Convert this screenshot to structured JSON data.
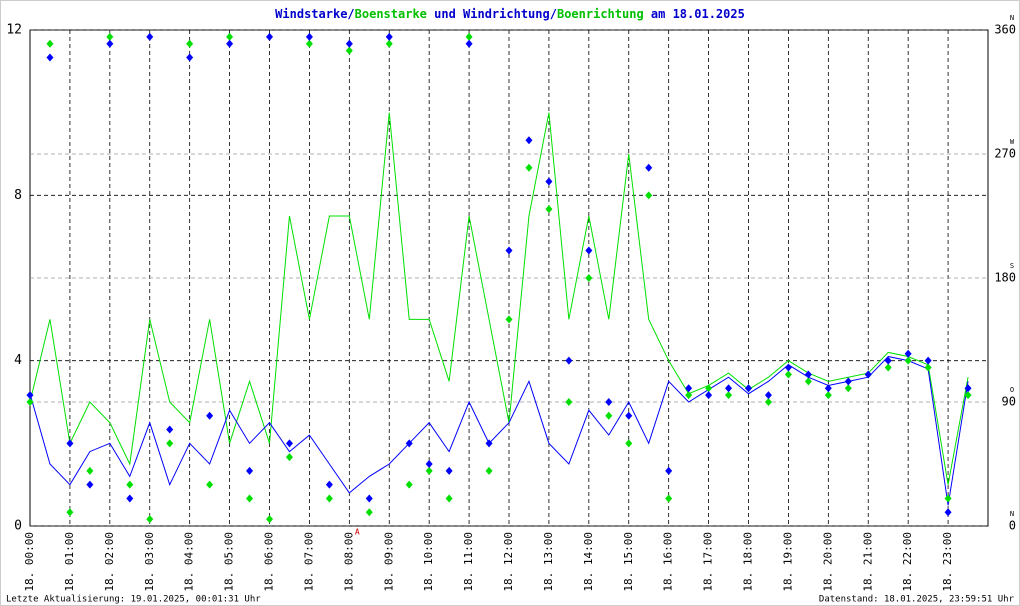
{
  "chart_data": {
    "type": "line",
    "title_parts": [
      "/",
      " und ",
      "/",
      " am 18.01.2025"
    ],
    "title_color": "#0000cc",
    "footer_left": "Letzte Aktualisierung: 19.01.2025, 00:01:31 Uhr",
    "footer_right": "Datenstand: 18.01.2025, 23:59:51 Uhr",
    "annotations": [
      {
        "text": "A",
        "x": 8.2
      }
    ],
    "x": [
      0,
      0.5,
      1,
      1.5,
      2,
      2.5,
      3,
      3.5,
      4,
      4.5,
      5,
      5.5,
      6,
      6.5,
      7,
      7.5,
      8,
      8.5,
      9,
      9.5,
      10,
      10.5,
      11,
      11.5,
      12,
      12.5,
      13,
      13.5,
      14,
      14.5,
      15,
      15.5,
      16,
      16.5,
      17,
      17.5,
      18,
      18.5,
      19,
      19.5,
      20,
      20.5,
      21,
      21.5,
      22,
      22.5,
      23,
      23.5
    ],
    "xlim": [
      0,
      24
    ],
    "xticks": [
      {
        "value": 0,
        "label": "18. 00:00"
      },
      {
        "value": 1,
        "label": "18. 01:00"
      },
      {
        "value": 2,
        "label": "18. 02:00"
      },
      {
        "value": 3,
        "label": "18. 03:00"
      },
      {
        "value": 4,
        "label": "18. 04:00"
      },
      {
        "value": 5,
        "label": "18. 05:00"
      },
      {
        "value": 6,
        "label": "18. 06:00"
      },
      {
        "value": 7,
        "label": "18. 07:00"
      },
      {
        "value": 8,
        "label": "18. 08:00"
      },
      {
        "value": 9,
        "label": "18. 09:00"
      },
      {
        "value": 10,
        "label": "18. 10:00"
      },
      {
        "value": 11,
        "label": "18. 11:00"
      },
      {
        "value": 12,
        "label": "18. 12:00"
      },
      {
        "value": 13,
        "label": "18. 13:00"
      },
      {
        "value": 14,
        "label": "18. 14:00"
      },
      {
        "value": 15,
        "label": "18. 15:00"
      },
      {
        "value": 16,
        "label": "18. 16:00"
      },
      {
        "value": 17,
        "label": "18. 17:00"
      },
      {
        "value": 18,
        "label": "18. 18:00"
      },
      {
        "value": 19,
        "label": "18. 19:00"
      },
      {
        "value": 20,
        "label": "18. 20:00"
      },
      {
        "value": 21,
        "label": "18. 21:00"
      },
      {
        "value": 22,
        "label": "18. 22:00"
      },
      {
        "value": 23,
        "label": "18. 23:00"
      }
    ],
    "ylim": [
      0,
      12
    ],
    "yticks": [
      0,
      4,
      8,
      12
    ],
    "y2lim": [
      0,
      360
    ],
    "y2ticks": [
      0,
      90,
      180,
      270,
      360
    ],
    "y2tick_directions": [
      "N",
      "O",
      "S",
      "W",
      "N"
    ],
    "grid": true,
    "series": [
      {
        "name": "Windstarke",
        "color": "#0000ff",
        "mark": "line",
        "values": [
          3.2,
          1.5,
          1.0,
          1.8,
          2.0,
          1.2,
          2.5,
          1.0,
          2.0,
          1.5,
          2.8,
          2.0,
          2.5,
          1.8,
          2.2,
          1.5,
          0.8,
          1.2,
          1.5,
          2.0,
          2.5,
          1.8,
          3.0,
          2.0,
          2.5,
          3.5,
          2.0,
          1.5,
          2.8,
          2.2,
          3.0,
          2.0,
          3.5,
          3.0,
          3.3,
          3.6,
          3.2,
          3.5,
          3.9,
          3.6,
          3.4,
          3.5,
          3.6,
          4.1,
          4.0,
          3.8,
          0.5,
          3.5
        ]
      },
      {
        "name": "Boenstarke",
        "color": "#00e000",
        "mark": "line",
        "values": [
          3.0,
          5.0,
          2.0,
          3.0,
          2.5,
          1.5,
          5.0,
          3.0,
          2.5,
          5.0,
          2.0,
          3.5,
          2.0,
          7.5,
          5.0,
          7.5,
          7.5,
          5.0,
          10.0,
          5.0,
          5.0,
          3.5,
          7.5,
          5.0,
          2.5,
          7.5,
          10.0,
          5.0,
          7.5,
          5.0,
          9.0,
          5.0,
          4.0,
          3.2,
          3.4,
          3.7,
          3.3,
          3.6,
          4.0,
          3.7,
          3.5,
          3.6,
          3.7,
          4.2,
          4.1,
          3.9,
          1.0,
          3.6
        ]
      },
      {
        "name": "Windrichtung",
        "color": "#0000ff",
        "mark": "diamond",
        "axis": "y2",
        "values": [
          95,
          340,
          60,
          30,
          350,
          20,
          355,
          70,
          340,
          80,
          350,
          40,
          355,
          60,
          355,
          30,
          350,
          20,
          355,
          60,
          45,
          40,
          350,
          60,
          200,
          280,
          250,
          120,
          200,
          90,
          80,
          260,
          40,
          100,
          95,
          100,
          100,
          95,
          115,
          110,
          100,
          105,
          110,
          120,
          125,
          120,
          10,
          100
        ]
      },
      {
        "name": "Boenrichtung",
        "color": "#00e000",
        "mark": "diamond",
        "axis": "y2",
        "values": [
          90,
          350,
          10,
          40,
          355,
          30,
          5,
          60,
          350,
          30,
          355,
          20,
          5,
          50,
          350,
          20,
          345,
          10,
          350,
          30,
          40,
          20,
          355,
          40,
          150,
          260,
          230,
          90,
          180,
          80,
          60,
          240,
          20,
          95,
          100,
          95,
          100,
          90,
          110,
          105,
          95,
          100,
          110,
          115,
          120,
          115,
          20,
          95
        ]
      }
    ]
  }
}
